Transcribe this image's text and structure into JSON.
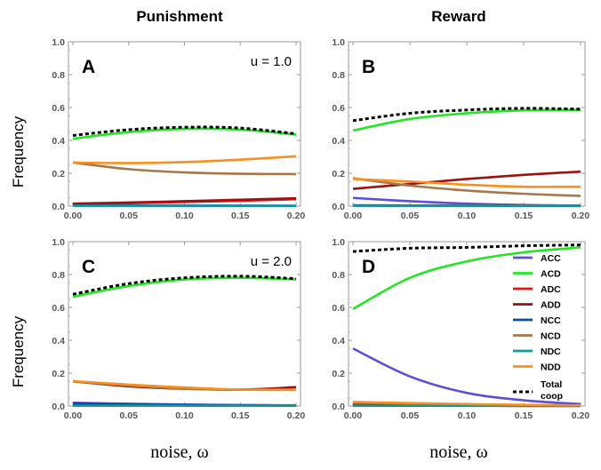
{
  "column_titles": [
    "Punishment",
    "Reward"
  ],
  "ylabel": "Frequency",
  "xlabel": "noise, ω",
  "colors": {
    "ACC": "#5a4fd6",
    "ACD": "#22e622",
    "ADC": "#ee1111",
    "ADD": "#9a1212",
    "NCC": "#0a4e96",
    "NCD": "#a6774a",
    "NDC": "#119a9a",
    "NDD": "#f7901e",
    "TOTAL": "#000000"
  },
  "legend": {
    "entries": [
      "ACC",
      "ACD",
      "ADC",
      "ADD",
      "NCC",
      "NCD",
      "NDC",
      "NDD"
    ],
    "total_label_1": "Total",
    "total_label_2": "coop"
  },
  "chart_data": [
    {
      "type": "line",
      "panel_label": "A",
      "annotation": "u = 1.0",
      "xlim": [
        0,
        0.2
      ],
      "ylim": [
        0,
        1
      ],
      "x": [
        0,
        0.05,
        0.1,
        0.15,
        0.2
      ],
      "xticks": [
        "0.00",
        "0.05",
        "0.10",
        "0.15",
        "0.20"
      ],
      "yticks": [
        "0.0",
        "0.2",
        "0.4",
        "0.6",
        "0.8",
        "1.0"
      ],
      "series": [
        {
          "key": "ACC",
          "values": [
            0.005,
            0.004,
            0.003,
            0.003,
            0.002
          ]
        },
        {
          "key": "ACD",
          "values": [
            0.41,
            0.45,
            0.47,
            0.465,
            0.435
          ]
        },
        {
          "key": "ADC",
          "values": [
            0.012,
            0.018,
            0.025,
            0.033,
            0.042
          ]
        },
        {
          "key": "ADD",
          "values": [
            0.015,
            0.022,
            0.03,
            0.039,
            0.048
          ]
        },
        {
          "key": "NCC",
          "values": [
            0.003,
            0.003,
            0.002,
            0.002,
            0.002
          ]
        },
        {
          "key": "NCD",
          "values": [
            0.265,
            0.225,
            0.205,
            0.197,
            0.195
          ]
        },
        {
          "key": "NDC",
          "values": [
            0.002,
            0.002,
            0.002,
            0.002,
            0.002
          ]
        },
        {
          "key": "NDD",
          "values": [
            0.265,
            0.262,
            0.268,
            0.283,
            0.303
          ]
        },
        {
          "key": "TOTAL",
          "values": [
            0.43,
            0.465,
            0.48,
            0.475,
            0.44
          ]
        }
      ]
    },
    {
      "type": "line",
      "panel_label": "B",
      "annotation": "",
      "xlim": [
        0,
        0.2
      ],
      "ylim": [
        0,
        1
      ],
      "x": [
        0,
        0.05,
        0.1,
        0.15,
        0.2
      ],
      "xticks": [
        "0.00",
        "0.05",
        "0.10",
        "0.15",
        "0.20"
      ],
      "yticks": [
        "0.0",
        "0.2",
        "0.4",
        "0.6",
        "0.8",
        "1.0"
      ],
      "series": [
        {
          "key": "ACC",
          "values": [
            0.05,
            0.03,
            0.015,
            0.007,
            0.003
          ]
        },
        {
          "key": "ACD",
          "values": [
            0.46,
            0.53,
            0.565,
            0.583,
            0.585
          ]
        },
        {
          "key": "ADC",
          "values": [
            0.005,
            0.004,
            0.003,
            0.003,
            0.002
          ]
        },
        {
          "key": "ADD",
          "values": [
            0.105,
            0.135,
            0.165,
            0.19,
            0.21
          ]
        },
        {
          "key": "NCC",
          "values": [
            0.003,
            0.002,
            0.002,
            0.001,
            0.001
          ]
        },
        {
          "key": "NCD",
          "values": [
            0.17,
            0.125,
            0.095,
            0.075,
            0.062
          ]
        },
        {
          "key": "NDC",
          "values": [
            0.002,
            0.002,
            0.002,
            0.002,
            0.002
          ]
        },
        {
          "key": "NDD",
          "values": [
            0.165,
            0.15,
            0.13,
            0.118,
            0.118
          ]
        },
        {
          "key": "TOTAL",
          "values": [
            0.52,
            0.565,
            0.585,
            0.595,
            0.59
          ]
        }
      ]
    },
    {
      "type": "line",
      "panel_label": "C",
      "annotation": "u = 2.0",
      "xlim": [
        0,
        0.2
      ],
      "ylim": [
        0,
        1
      ],
      "x": [
        0,
        0.05,
        0.1,
        0.15,
        0.2
      ],
      "xticks": [
        "0.00",
        "0.05",
        "0.10",
        "0.15",
        "0.20"
      ],
      "yticks": [
        "0.0",
        "0.2",
        "0.4",
        "0.6",
        "0.8",
        "1.0"
      ],
      "series": [
        {
          "key": "ACC",
          "values": [
            0.02,
            0.014,
            0.009,
            0.006,
            0.004
          ]
        },
        {
          "key": "ACD",
          "values": [
            0.665,
            0.73,
            0.77,
            0.78,
            0.77
          ]
        },
        {
          "key": "ADC",
          "values": [
            0.003,
            0.003,
            0.002,
            0.002,
            0.002
          ]
        },
        {
          "key": "ADD",
          "values": [
            0.15,
            0.12,
            0.105,
            0.1,
            0.115
          ]
        },
        {
          "key": "NCC",
          "values": [
            0.015,
            0.01,
            0.007,
            0.005,
            0.003
          ]
        },
        {
          "key": "NCD",
          "values": [
            0.15,
            0.125,
            0.105,
            0.1,
            0.1
          ]
        },
        {
          "key": "NDC",
          "values": [
            0.002,
            0.002,
            0.002,
            0.002,
            0.002
          ]
        },
        {
          "key": "NDD",
          "values": [
            0.152,
            0.13,
            0.113,
            0.1,
            0.098
          ]
        },
        {
          "key": "TOTAL",
          "values": [
            0.68,
            0.745,
            0.78,
            0.79,
            0.775
          ]
        }
      ]
    },
    {
      "type": "line",
      "panel_label": "D",
      "annotation": "",
      "xlim": [
        0,
        0.2
      ],
      "ylim": [
        0,
        1
      ],
      "x": [
        0,
        0.05,
        0.1,
        0.15,
        0.2
      ],
      "xticks": [
        "0.00",
        "0.05",
        "0.10",
        "0.15",
        "0.20"
      ],
      "yticks": [
        "0.0",
        "0.2",
        "0.4",
        "0.6",
        "0.8",
        "1.0"
      ],
      "series": [
        {
          "key": "ACC",
          "values": [
            0.35,
            0.18,
            0.08,
            0.035,
            0.012
          ]
        },
        {
          "key": "ACD",
          "values": [
            0.59,
            0.78,
            0.88,
            0.935,
            0.965
          ]
        },
        {
          "key": "ADC",
          "values": [
            0.003,
            0.002,
            0.002,
            0.001,
            0.001
          ]
        },
        {
          "key": "ADD",
          "values": [
            0.01,
            0.007,
            0.005,
            0.003,
            0.002
          ]
        },
        {
          "key": "NCC",
          "values": [
            0.003,
            0.002,
            0.002,
            0.001,
            0.001
          ]
        },
        {
          "key": "NCD",
          "values": [
            0.02,
            0.015,
            0.01,
            0.006,
            0.004
          ]
        },
        {
          "key": "NDC",
          "values": [
            0.002,
            0.002,
            0.001,
            0.001,
            0.001
          ]
        },
        {
          "key": "NDD",
          "values": [
            0.025,
            0.018,
            0.012,
            0.007,
            0.004
          ]
        },
        {
          "key": "TOTAL",
          "values": [
            0.94,
            0.96,
            0.965,
            0.975,
            0.98
          ]
        }
      ]
    }
  ]
}
